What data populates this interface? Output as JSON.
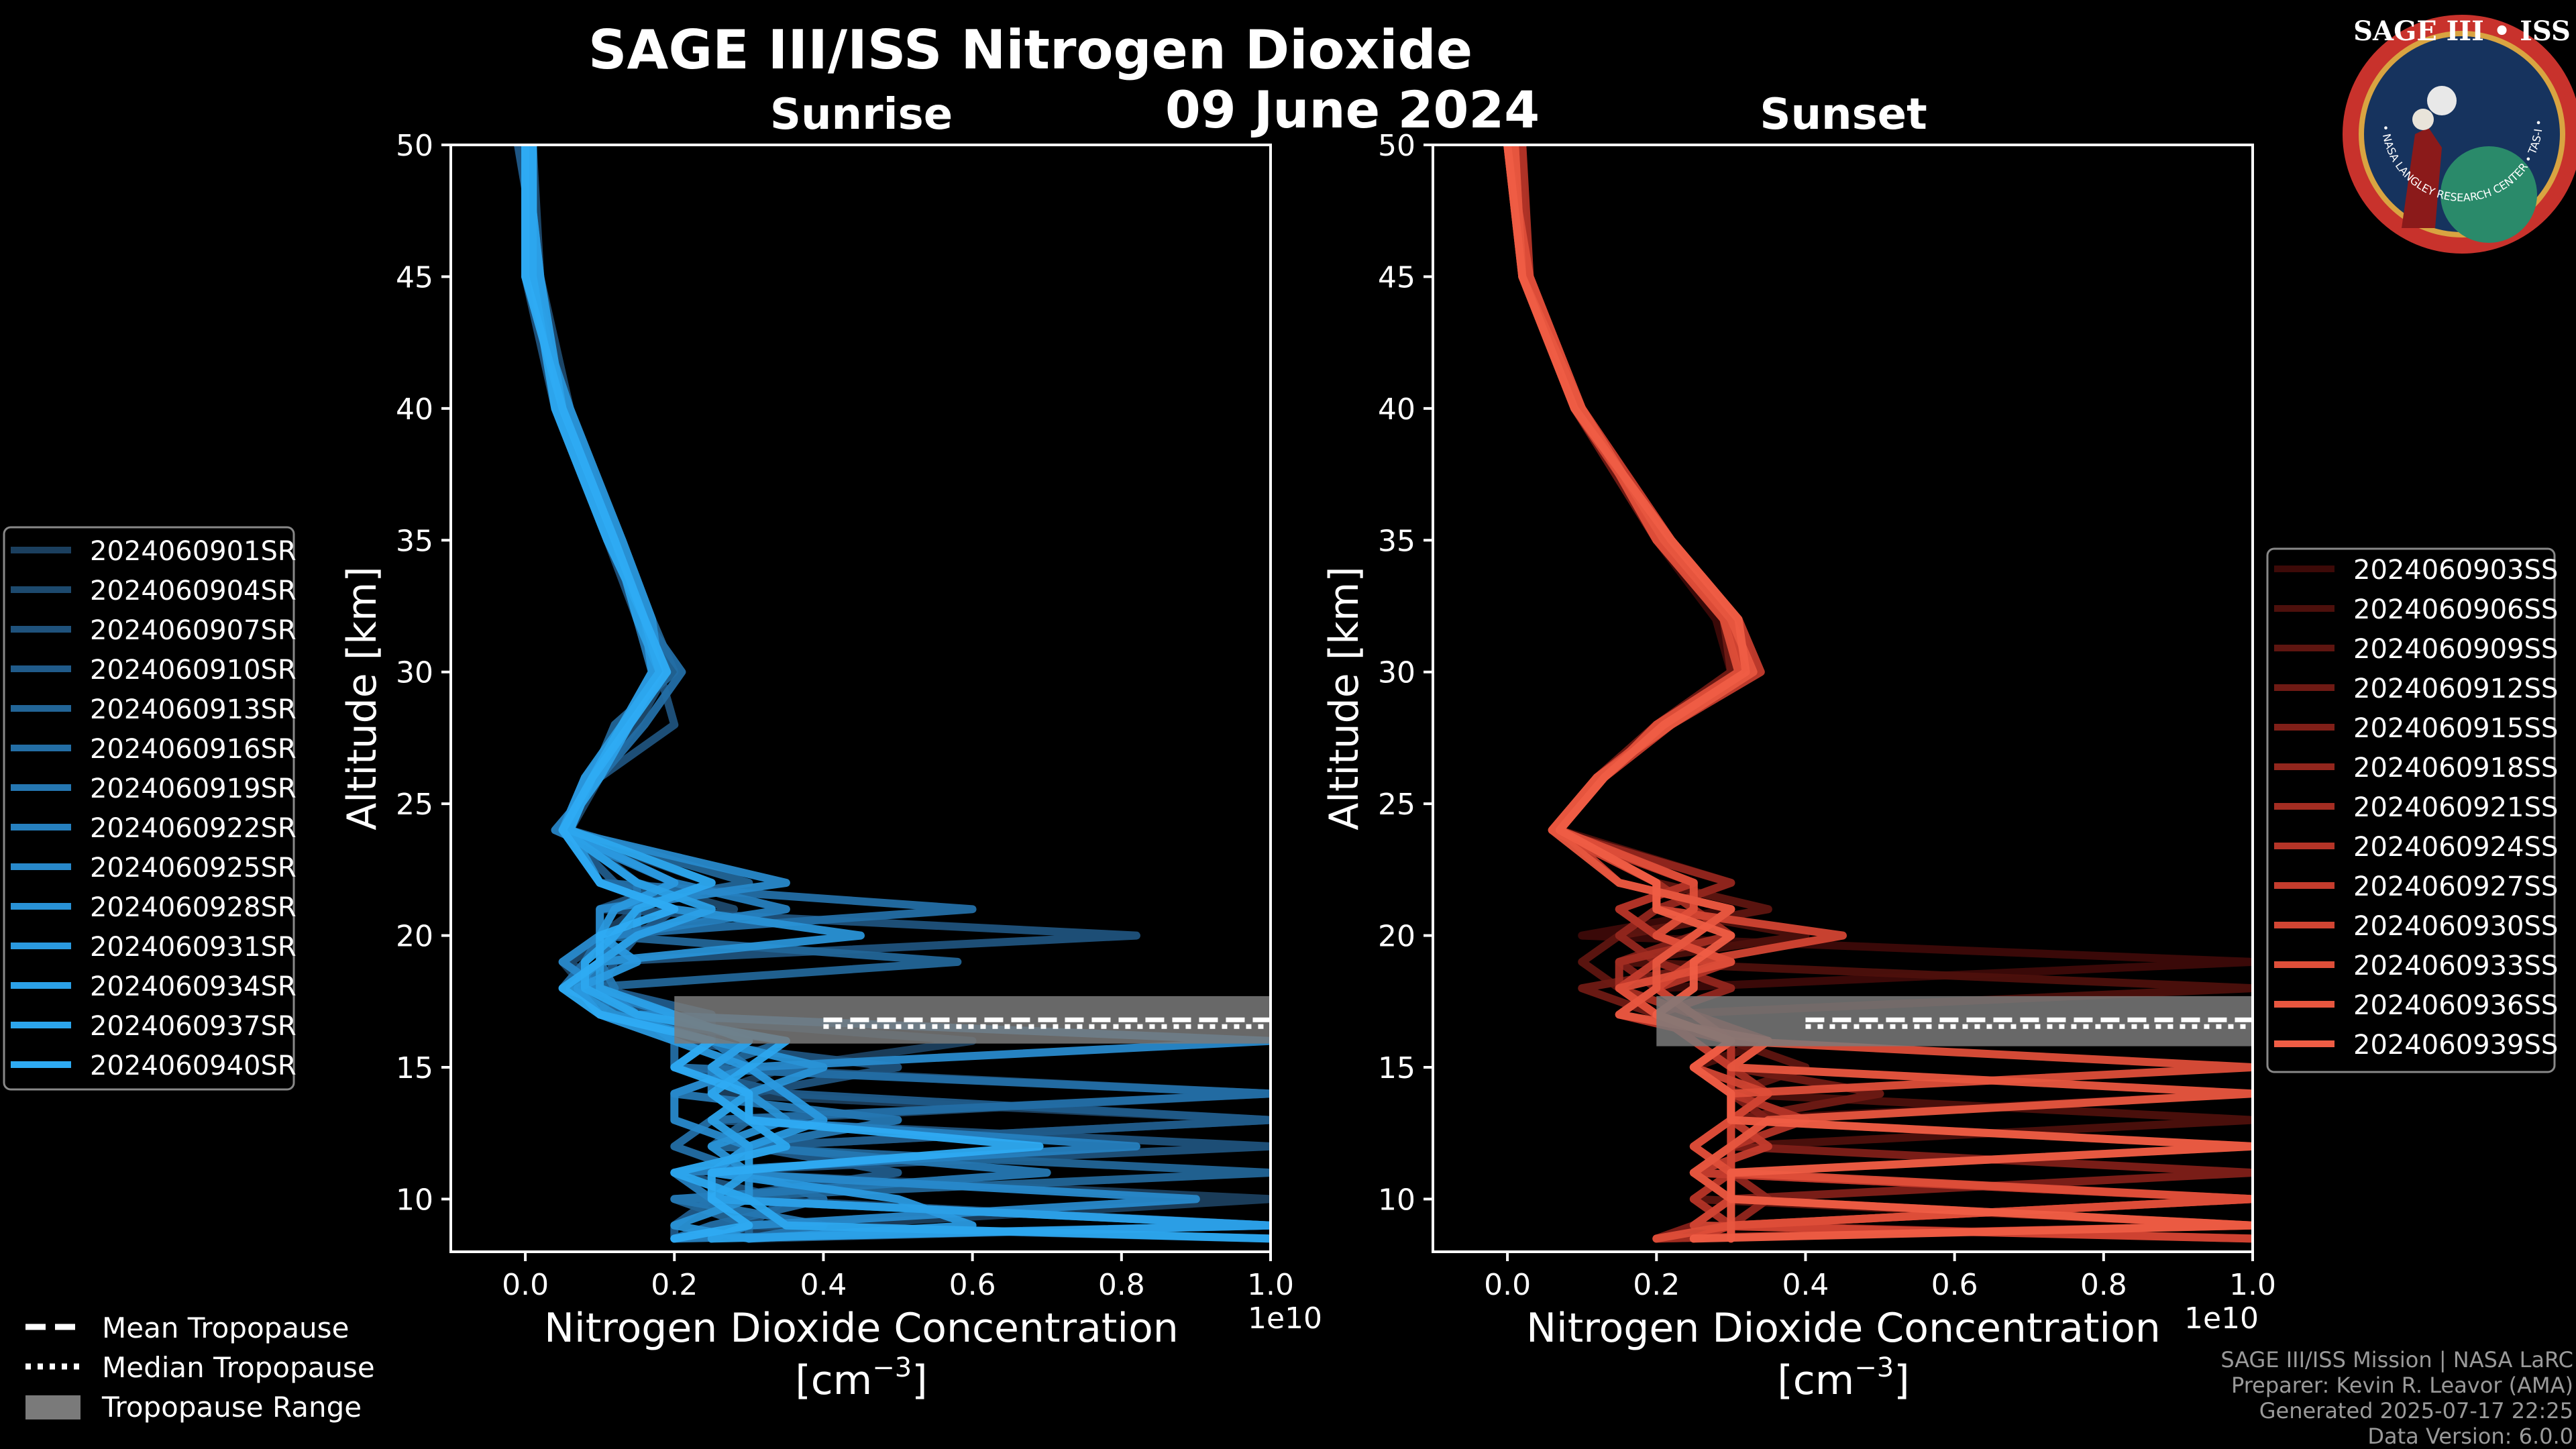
{
  "title": "SAGE III/ISS Nitrogen Dioxide",
  "date": "09 June 2024",
  "logo": {
    "top_text": "SAGE III • ISS",
    "ring_text": "BALL • NASA LANGLEY RESEARCH CENTER • TAS-I • ESA",
    "colors": {
      "ring": "#c8322c",
      "inner": "#16335e",
      "gold": "#d9a441"
    }
  },
  "footer": {
    "line1": "SAGE III/ISS Mission | NASA LaRC",
    "line2": "Preparer: Kevin R. Leavor (AMA)",
    "line3": "Generated 2025-07-17 22:25",
    "line4": "Data Version: 6.0.0"
  },
  "tropopause_legend": [
    {
      "label": "Mean Tropopause",
      "style": "dashed"
    },
    {
      "label": "Median Tropopause",
      "style": "dotted"
    },
    {
      "label": "Tropopause Range",
      "style": "patch"
    }
  ],
  "chart_data": [
    {
      "type": "line",
      "title": "Sunrise",
      "xlabel": "Nitrogen Dioxide Concentration",
      "xlabel_unit": "[cm",
      "xlabel_unit_exp": "−3",
      "xlabel_unit_close": "]",
      "ylabel": "Altitude [km]",
      "offset_text": "1e10",
      "xlim": [
        -0.1,
        1.0
      ],
      "ylim": [
        8,
        50
      ],
      "xticks": [
        "0.0",
        "0.2",
        "0.4",
        "0.6",
        "0.8",
        "1.0"
      ],
      "xtick_values": [
        0.0,
        0.2,
        0.4,
        0.6,
        0.8,
        1.0
      ],
      "yticks": [
        "10",
        "15",
        "20",
        "25",
        "30",
        "35",
        "40",
        "45",
        "50"
      ],
      "ytick_values": [
        10,
        15,
        20,
        25,
        30,
        35,
        40,
        45,
        50
      ],
      "grid": false,
      "legend_position": "left",
      "tropopause": {
        "mean_km": 16.8,
        "median_km": 16.8,
        "range_km": [
          15.9,
          17.7
        ]
      },
      "colors": [
        "#1b3f5e",
        "#1d4a6e",
        "#1f527c",
        "#205b8a",
        "#226597",
        "#236ea5",
        "#2577b2",
        "#2680bf",
        "#2889cb",
        "#2992d6",
        "#2a99df",
        "#2ba0e7",
        "#2ca6ee",
        "#2eabf3"
      ],
      "profile_altitudes": [
        50,
        45,
        40,
        35,
        32,
        30,
        28,
        26,
        24,
        22,
        21,
        20,
        19,
        18,
        17,
        16,
        15,
        14,
        13,
        12,
        11,
        10,
        9,
        8.5
      ],
      "series": [
        {
          "name": "2024060901SR",
          "x": [
            0.0,
            0.01,
            0.05,
            0.12,
            0.16,
            0.17,
            0.13,
            0.09,
            0.05,
            0.25,
            0.15,
            0.1,
            0.05,
            0.08,
            0.12,
            0.6,
            0.35,
            0.25,
            1.0,
            0.3,
            0.25,
            1.0,
            0.4,
            0.2
          ]
        },
        {
          "name": "2024060904SR",
          "x": [
            0.01,
            0.02,
            0.06,
            0.13,
            0.17,
            0.19,
            0.15,
            0.1,
            0.06,
            0.15,
            0.28,
            0.12,
            0.06,
            0.1,
            0.14,
            0.3,
            0.25,
            1.0,
            0.3,
            0.35,
            0.2,
            0.3,
            1.0,
            0.3
          ]
        },
        {
          "name": "2024060907SR",
          "x": [
            0.0,
            0.0,
            0.04,
            0.11,
            0.15,
            0.18,
            0.2,
            0.1,
            0.04,
            0.2,
            0.1,
            0.82,
            0.1,
            0.05,
            0.2,
            0.2,
            0.5,
            0.3,
            0.25,
            1.0,
            0.2,
            0.35,
            0.3,
            1.0
          ]
        },
        {
          "name": "2024060910SR",
          "x": [
            -0.01,
            0.02,
            0.05,
            0.12,
            0.16,
            0.18,
            0.14,
            0.08,
            0.05,
            0.12,
            0.2,
            0.15,
            0.12,
            0.1,
            0.25,
            0.25,
            0.2,
            0.35,
            1.0,
            0.3,
            0.5,
            0.25,
            0.2,
            0.2
          ]
        },
        {
          "name": "2024060913SR",
          "x": [
            0.01,
            0.01,
            0.05,
            0.13,
            0.17,
            0.2,
            0.12,
            0.09,
            0.06,
            0.3,
            0.1,
            0.1,
            0.58,
            0.07,
            0.1,
            0.35,
            0.25,
            0.3,
            0.3,
            0.25,
            1.0,
            0.2,
            0.3,
            0.3
          ]
        },
        {
          "name": "2024060916SR",
          "x": [
            0.0,
            0.0,
            0.06,
            0.12,
            0.16,
            0.21,
            0.16,
            0.1,
            0.05,
            0.1,
            0.6,
            0.1,
            0.08,
            0.05,
            0.15,
            0.2,
            0.2,
            1.0,
            0.25,
            0.2,
            0.3,
            0.4,
            0.25,
            0.2
          ]
        },
        {
          "name": "2024060919SR",
          "x": [
            0.01,
            0.01,
            0.05,
            0.12,
            0.15,
            0.17,
            0.13,
            0.09,
            0.05,
            0.15,
            0.15,
            0.15,
            0.1,
            0.12,
            0.1,
            0.25,
            0.3,
            0.2,
            0.5,
            0.3,
            0.7,
            0.2,
            0.4,
            0.3
          ]
        },
        {
          "name": "2024060922SR",
          "x": [
            0.0,
            0.02,
            0.04,
            0.11,
            0.16,
            0.18,
            0.14,
            0.1,
            0.04,
            0.2,
            0.35,
            0.12,
            0.1,
            0.08,
            0.2,
            0.3,
            0.25,
            0.25,
            0.3,
            0.82,
            0.2,
            0.25,
            1.0,
            0.2
          ]
        },
        {
          "name": "2024060925SR",
          "x": [
            0.01,
            0.01,
            0.05,
            0.12,
            0.16,
            0.19,
            0.13,
            0.1,
            0.05,
            0.35,
            0.1,
            0.1,
            0.05,
            0.1,
            0.15,
            1.0,
            0.3,
            0.2,
            0.2,
            0.3,
            0.25,
            0.9,
            0.3,
            0.25
          ]
        },
        {
          "name": "2024060928SR",
          "x": [
            0.0,
            0.0,
            0.06,
            0.13,
            0.17,
            0.18,
            0.14,
            0.09,
            0.06,
            0.1,
            0.2,
            0.45,
            0.1,
            0.06,
            0.12,
            0.25,
            0.4,
            0.3,
            0.35,
            0.25,
            0.3,
            0.3,
            0.2,
            0.3
          ]
        },
        {
          "name": "2024060931SR",
          "x": [
            0.01,
            0.01,
            0.05,
            0.12,
            0.16,
            0.17,
            0.13,
            0.08,
            0.05,
            0.2,
            0.12,
            0.1,
            0.15,
            0.07,
            0.1,
            0.2,
            0.3,
            0.35,
            0.4,
            0.3,
            0.25,
            0.5,
            0.6,
            0.3
          ]
        },
        {
          "name": "2024060934SR",
          "x": [
            0.0,
            0.02,
            0.05,
            0.12,
            0.15,
            0.18,
            0.14,
            0.1,
            0.05,
            0.15,
            0.25,
            0.15,
            0.1,
            0.1,
            0.2,
            0.3,
            0.25,
            0.3,
            0.25,
            0.3,
            0.3,
            0.25,
            1.0,
            0.25
          ]
        },
        {
          "name": "2024060937SR",
          "x": [
            0.01,
            0.01,
            0.04,
            0.11,
            0.16,
            0.18,
            0.13,
            0.09,
            0.06,
            0.25,
            0.15,
            0.12,
            0.08,
            0.08,
            0.15,
            0.35,
            0.3,
            0.25,
            0.3,
            0.35,
            0.2,
            0.3,
            0.35,
            1.0
          ]
        },
        {
          "name": "2024060940SR",
          "x": [
            0.0,
            0.0,
            0.05,
            0.12,
            0.16,
            0.19,
            0.14,
            0.09,
            0.05,
            0.1,
            0.2,
            0.1,
            0.1,
            0.05,
            0.1,
            0.25,
            0.2,
            0.3,
            0.3,
            0.69,
            0.25,
            0.25,
            0.3,
            0.2
          ]
        }
      ]
    },
    {
      "type": "line",
      "title": "Sunset",
      "xlabel": "Nitrogen Dioxide Concentration",
      "xlabel_unit": "[cm",
      "xlabel_unit_exp": "−3",
      "xlabel_unit_close": "]",
      "ylabel": "Altitude [km]",
      "offset_text": "1e10",
      "xlim": [
        -0.1,
        1.0
      ],
      "ylim": [
        8,
        50
      ],
      "xticks": [
        "0.0",
        "0.2",
        "0.4",
        "0.6",
        "0.8",
        "1.0"
      ],
      "xtick_values": [
        0.0,
        0.2,
        0.4,
        0.6,
        0.8,
        1.0
      ],
      "yticks": [
        "10",
        "15",
        "20",
        "25",
        "30",
        "35",
        "40",
        "45",
        "50"
      ],
      "ytick_values": [
        10,
        15,
        20,
        25,
        30,
        35,
        40,
        45,
        50
      ],
      "grid": false,
      "legend_position": "right",
      "tropopause": {
        "mean_km": 16.8,
        "median_km": 16.8,
        "range_km": [
          15.8,
          17.7
        ]
      },
      "colors": [
        "#3d0a08",
        "#4d100c",
        "#5e1510",
        "#6f1a14",
        "#801f18",
        "#92261d",
        "#a32d22",
        "#b43427",
        "#c43c2d",
        "#d24533",
        "#de4e39",
        "#e7563f",
        "#ef5d45"
      ],
      "profile_altitudes": [
        50,
        45,
        40,
        35,
        32,
        30,
        28,
        26,
        24,
        22,
        21,
        20,
        19,
        18,
        17,
        16,
        15,
        14,
        13,
        12,
        11,
        10,
        9,
        8.5
      ],
      "series": [
        {
          "name": "2024060903SS",
          "x": [
            0.0,
            0.02,
            0.09,
            0.2,
            0.28,
            0.3,
            0.2,
            0.12,
            0.06,
            0.15,
            0.3,
            0.1,
            1.0,
            0.2,
            0.15,
            0.3,
            0.3,
            1.0,
            0.3,
            0.25,
            0.3,
            0.3,
            0.25,
            0.2
          ]
        },
        {
          "name": "2024060906SS",
          "x": [
            0.01,
            0.03,
            0.1,
            0.21,
            0.29,
            0.31,
            0.21,
            0.12,
            0.07,
            0.3,
            0.2,
            0.4,
            0.15,
            1.0,
            0.2,
            0.35,
            0.25,
            0.3,
            1.0,
            0.3,
            0.25,
            0.3,
            0.3,
            0.25
          ]
        },
        {
          "name": "2024060909SS",
          "x": [
            0.0,
            0.02,
            0.1,
            0.22,
            0.3,
            0.32,
            0.22,
            0.13,
            0.07,
            0.2,
            0.35,
            0.15,
            0.1,
            0.15,
            0.25,
            0.3,
            0.4,
            0.3,
            0.3,
            1.0,
            0.3,
            0.25,
            1.0,
            0.2
          ]
        },
        {
          "name": "2024060912SS",
          "x": [
            0.02,
            0.02,
            0.09,
            0.2,
            0.29,
            0.3,
            0.2,
            0.12,
            0.06,
            0.25,
            0.15,
            0.2,
            0.3,
            0.1,
            0.2,
            0.25,
            0.3,
            0.5,
            0.3,
            0.3,
            0.25,
            1.0,
            0.3,
            0.3
          ]
        },
        {
          "name": "2024060915SS",
          "x": [
            0.0,
            0.03,
            0.1,
            0.21,
            0.31,
            0.33,
            0.21,
            0.13,
            0.07,
            0.15,
            0.3,
            0.25,
            0.15,
            0.2,
            0.15,
            0.3,
            0.3,
            0.3,
            0.35,
            0.3,
            1.0,
            0.3,
            0.25,
            0.2
          ]
        },
        {
          "name": "2024060918SS",
          "x": [
            0.01,
            0.02,
            0.1,
            0.22,
            0.3,
            0.31,
            0.22,
            0.12,
            0.06,
            0.3,
            0.2,
            0.15,
            0.2,
            0.3,
            0.2,
            0.3,
            0.25,
            0.3,
            0.3,
            0.25,
            0.3,
            0.35,
            0.3,
            1.0
          ]
        },
        {
          "name": "2024060921SS",
          "x": [
            0.0,
            0.02,
            0.09,
            0.21,
            0.29,
            0.32,
            0.2,
            0.13,
            0.07,
            0.2,
            0.25,
            0.3,
            0.15,
            0.15,
            0.25,
            0.35,
            0.3,
            0.35,
            0.3,
            0.3,
            0.25,
            0.3,
            1.0,
            0.2
          ]
        },
        {
          "name": "2024060924SS",
          "x": [
            0.02,
            0.03,
            0.1,
            0.2,
            0.3,
            0.33,
            0.21,
            0.12,
            0.06,
            0.25,
            0.15,
            0.2,
            0.3,
            0.2,
            0.15,
            0.3,
            0.3,
            0.3,
            0.4,
            0.3,
            0.3,
            0.25,
            0.3,
            0.3
          ]
        },
        {
          "name": "2024060927SS",
          "x": [
            0.0,
            0.02,
            0.1,
            0.22,
            0.31,
            0.34,
            0.22,
            0.13,
            0.07,
            0.15,
            0.3,
            0.25,
            0.2,
            0.15,
            0.2,
            0.25,
            0.3,
            0.3,
            0.3,
            0.35,
            0.25,
            1.0,
            0.3,
            0.25
          ]
        },
        {
          "name": "2024060930SS",
          "x": [
            0.01,
            0.02,
            0.09,
            0.21,
            0.3,
            0.32,
            0.21,
            0.12,
            0.06,
            0.2,
            0.2,
            0.45,
            0.25,
            0.2,
            0.25,
            0.3,
            0.25,
            0.35,
            0.3,
            0.3,
            0.3,
            0.3,
            0.25,
            1.0
          ]
        },
        {
          "name": "2024060933SS",
          "x": [
            0.0,
            0.03,
            0.1,
            0.2,
            0.29,
            0.31,
            0.2,
            0.13,
            0.07,
            0.25,
            0.25,
            0.2,
            0.3,
            0.15,
            0.2,
            0.3,
            1.0,
            0.3,
            0.3,
            0.25,
            0.3,
            1.0,
            0.3,
            0.2
          ]
        },
        {
          "name": "2024060936SS",
          "x": [
            0.01,
            0.02,
            0.1,
            0.21,
            0.3,
            0.33,
            0.22,
            0.12,
            0.06,
            0.15,
            0.3,
            0.25,
            0.2,
            0.2,
            0.15,
            0.35,
            0.3,
            1.0,
            0.35,
            0.3,
            0.25,
            0.3,
            0.3,
            0.3
          ]
        },
        {
          "name": "2024060939SS",
          "x": [
            0.0,
            0.02,
            0.09,
            0.22,
            0.31,
            0.32,
            0.21,
            0.13,
            0.07,
            0.2,
            0.2,
            0.3,
            0.25,
            0.25,
            0.2,
            0.3,
            0.25,
            0.3,
            0.3,
            1.0,
            0.3,
            0.3,
            1.0,
            0.25
          ]
        }
      ]
    }
  ]
}
